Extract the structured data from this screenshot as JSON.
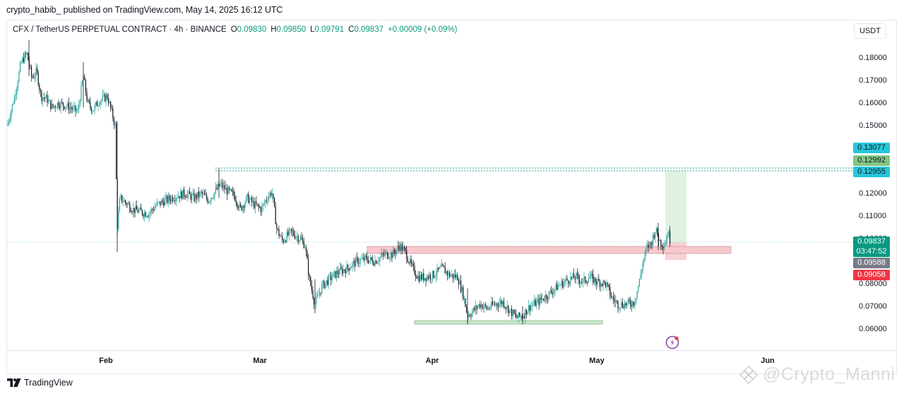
{
  "header": {
    "publish_line": "crypto_habib_ published on TradingView.com, May 14, 2025 16:12 UTC"
  },
  "legend": {
    "symbol": "CFX / TetherUS PERPETUAL CONTRACT · 4h · BINANCE",
    "open_label": "O",
    "open": "0.09830",
    "high_label": "H",
    "high": "0.09850",
    "low_label": "L",
    "low": "0.09791",
    "close_label": "C",
    "close": "0.09837",
    "change": "+0.00009 (+0.09%)"
  },
  "price_axis": {
    "unit": "USDT",
    "ticks": [
      "0.18000",
      "0.17000",
      "0.16000",
      "0.15000",
      "0.12000",
      "0.11000",
      "0.08000",
      "0.07000",
      "0.06000"
    ],
    "badges": [
      {
        "value": "0.13077",
        "color": "#26c6da",
        "text_color": "#131722"
      },
      {
        "value": "0.12992",
        "color": "#81c784",
        "text_color": "#131722"
      },
      {
        "value": "0.12955",
        "color": "#26c6da",
        "text_color": "#131722"
      },
      {
        "value": "0.09837",
        "color": "#089981",
        "text_color": "#ffffff"
      },
      {
        "value": "03:47:52",
        "color": "#089981",
        "text_color": "#ffffff"
      },
      {
        "value": "0.09588",
        "color": "#787b86",
        "text_color": "#ffffff"
      },
      {
        "value": "0.09058",
        "color": "#f23645",
        "text_color": "#ffffff"
      }
    ]
  },
  "time_axis": {
    "ticks": [
      "Feb",
      "Mar",
      "Apr",
      "May",
      "Jun"
    ]
  },
  "footer": {
    "brand": "TradingView",
    "watermark": "@Crypto_Manni"
  },
  "colors": {
    "up": "#26a69a",
    "down": "#131722",
    "resistance_zone": "#f8c8cc",
    "support_zone": "#c8e6c9",
    "target_box": "#dff2df",
    "stop_box": "#f9d0d4",
    "dotted_line": "#26a69a"
  },
  "chart_data": {
    "type": "candlestick",
    "title": "CFX / TetherUS PERPETUAL CONTRACT · 4h · BINANCE",
    "xlabel": "",
    "ylabel": "USDT",
    "ylim": [
      0.055,
      0.19
    ],
    "x_ticks": [
      "Feb",
      "Mar",
      "Apr",
      "May",
      "Jun"
    ],
    "y_ticks": [
      0.06,
      0.07,
      0.08,
      0.11,
      0.12,
      0.15,
      0.16,
      0.17,
      0.18
    ],
    "grid": false,
    "ohlc_last": {
      "open": 0.0983,
      "high": 0.0985,
      "low": 0.09791,
      "close": 0.09837,
      "change": 9e-05,
      "change_pct": 0.09
    },
    "approx_close_path": [
      {
        "date": "mid-Jan",
        "price": 0.15
      },
      {
        "date": "late-Jan",
        "price": 0.182
      },
      {
        "date": "late-Jan",
        "price": 0.163
      },
      {
        "date": "early-Feb",
        "price": 0.172
      },
      {
        "date": "early-Feb",
        "price": 0.16
      },
      {
        "date": "Feb 3",
        "price": 0.094
      },
      {
        "date": "Feb",
        "price": 0.118
      },
      {
        "date": "mid-Feb",
        "price": 0.121
      },
      {
        "date": "late-Feb",
        "price": 0.129
      },
      {
        "date": "late-Feb",
        "price": 0.117
      },
      {
        "date": "early-Mar",
        "price": 0.122
      },
      {
        "date": "Mar",
        "price": 0.1
      },
      {
        "date": "Mar 10",
        "price": 0.069
      },
      {
        "date": "mid-Mar",
        "price": 0.085
      },
      {
        "date": "late-Mar",
        "price": 0.097
      },
      {
        "date": "late-Mar",
        "price": 0.098
      },
      {
        "date": "early-Apr",
        "price": 0.084
      },
      {
        "date": "Apr 7",
        "price": 0.063
      },
      {
        "date": "mid-Apr",
        "price": 0.07
      },
      {
        "date": "Apr 20",
        "price": 0.063
      },
      {
        "date": "late-Apr",
        "price": 0.08
      },
      {
        "date": "early-May",
        "price": 0.083
      },
      {
        "date": "May 7",
        "price": 0.071
      },
      {
        "date": "May 10",
        "price": 0.097
      },
      {
        "date": "May 11",
        "price": 0.106
      },
      {
        "date": "May 14",
        "price": 0.09837
      }
    ],
    "annotations": [
      {
        "type": "horizontal_dotted_line",
        "price": 0.13077,
        "label": "0.13077"
      },
      {
        "type": "horizontal_dotted_line",
        "price": 0.12955,
        "label": "0.12955"
      },
      {
        "type": "horizontal_dotted_line",
        "price": 0.09837,
        "label": "current price"
      },
      {
        "type": "resistance_zone",
        "price_range": [
          0.0958,
          0.0988
        ],
        "from": "mid-Mar",
        "to": "late-May"
      },
      {
        "type": "support_zone",
        "price_range": [
          0.0618,
          0.0633
        ],
        "from": "late-Mar",
        "to": "early-May"
      },
      {
        "type": "long_position_target",
        "price_range": [
          0.0984,
          0.12992
        ]
      },
      {
        "type": "long_position_stop",
        "price_range": [
          0.09058,
          0.0984
        ]
      }
    ],
    "legend_position": "top-left"
  }
}
